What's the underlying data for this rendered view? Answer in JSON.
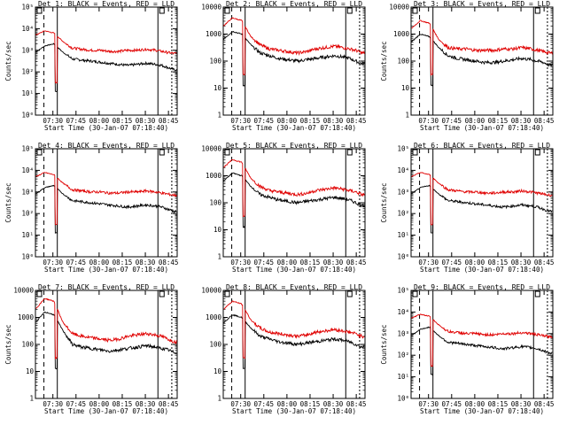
{
  "colors": {
    "events": "#000000",
    "lld": "#e00000",
    "axis": "#000000"
  },
  "chart_data": [
    {
      "type": "line",
      "title": "Det  1: BLACK = Events, RED = LLD",
      "xlabel": "Start Time (30-Jan-07 07:18:40)",
      "ylabel": "Counts/sec",
      "log": true,
      "ylim_exp": [
        0,
        5
      ],
      "yticks": [
        "10⁰",
        "10¹",
        "10²",
        "10³",
        "10⁴",
        "10⁵"
      ],
      "xticks": [
        "07:30",
        "07:45",
        "08:00",
        "08:15",
        "08:30",
        "08:45"
      ],
      "series": [
        {
          "name": "Events",
          "profile": "p1b"
        },
        {
          "name": "LLD",
          "profile": "p1r"
        }
      ]
    },
    {
      "type": "line",
      "title": "Det  2: BLACK = Events, RED = LLD",
      "xlabel": "Start Time (30-Jan-07 07:18:40)",
      "ylabel": "",
      "log": true,
      "ylim_exp": [
        0,
        4
      ],
      "yticks": [
        "1",
        "10",
        "100",
        "1000",
        "10000"
      ],
      "xticks": [
        "07:30",
        "07:45",
        "08:00",
        "08:15",
        "08:30",
        "08:45"
      ],
      "series": [
        {
          "name": "Events",
          "profile": "p2b"
        },
        {
          "name": "LLD",
          "profile": "p2r"
        }
      ]
    },
    {
      "type": "line",
      "title": "Det  3: BLACK = Events, RED = LLD",
      "xlabel": "Start Time (30-Jan-07 07:18:40)",
      "ylabel": "Counts/sec",
      "log": true,
      "ylim_exp": [
        0,
        4
      ],
      "yticks": [
        "1",
        "10",
        "100",
        "1000",
        "10000"
      ],
      "xticks": [
        "07:30",
        "07:45",
        "08:00",
        "08:15",
        "08:30",
        "08:45"
      ],
      "series": [
        {
          "name": "Events",
          "profile": "p3b"
        },
        {
          "name": "LLD",
          "profile": "p3r"
        }
      ]
    },
    {
      "type": "line",
      "title": "Det  4: BLACK = Events, RED = LLD",
      "xlabel": "Start Time (30-Jan-07 07:18:40)",
      "ylabel": "Counts/sec",
      "log": true,
      "ylim_exp": [
        0,
        5
      ],
      "yticks": [
        "10⁰",
        "10¹",
        "10²",
        "10³",
        "10⁴",
        "10⁵"
      ],
      "xticks": [
        "07:30",
        "07:45",
        "08:00",
        "08:15",
        "08:30",
        "08:45"
      ],
      "series": [
        {
          "name": "Events",
          "profile": "p1b"
        },
        {
          "name": "LLD",
          "profile": "p1r"
        }
      ]
    },
    {
      "type": "line",
      "title": "Det  5: BLACK = Events, RED = LLD",
      "xlabel": "Start Time (30-Jan-07 07:18:40)",
      "ylabel": "",
      "log": true,
      "ylim_exp": [
        0,
        4
      ],
      "yticks": [
        "1",
        "10",
        "100",
        "1000",
        "10000"
      ],
      "xticks": [
        "07:30",
        "07:45",
        "08:00",
        "08:15",
        "08:30",
        "08:45"
      ],
      "series": [
        {
          "name": "Events",
          "profile": "p2b"
        },
        {
          "name": "LLD",
          "profile": "p2r"
        }
      ]
    },
    {
      "type": "line",
      "title": "Det  6: BLACK = Events, RED = LLD",
      "xlabel": "Start Time (30-Jan-07 07:18:40)",
      "ylabel": "Counts/sec",
      "log": true,
      "ylim_exp": [
        0,
        5
      ],
      "yticks": [
        "10⁰",
        "10¹",
        "10²",
        "10³",
        "10⁴",
        "10⁵"
      ],
      "xticks": [
        "07:30",
        "07:45",
        "08:00",
        "08:15",
        "08:30",
        "08:45"
      ],
      "series": [
        {
          "name": "Events",
          "profile": "p1b"
        },
        {
          "name": "LLD",
          "profile": "p1r"
        }
      ]
    },
    {
      "type": "line",
      "title": "Det  7: BLACK = Events, RED = LLD",
      "xlabel": "Start Time (30-Jan-07 07:18:40)",
      "ylabel": "Counts/sec",
      "log": true,
      "ylim_exp": [
        0,
        4
      ],
      "yticks": [
        "1",
        "10",
        "100",
        "1000",
        "10000"
      ],
      "xticks": [
        "07:30",
        "07:45",
        "08:00",
        "08:15",
        "08:30",
        "08:45"
      ],
      "series": [
        {
          "name": "Events",
          "profile": "p7b"
        },
        {
          "name": "LLD",
          "profile": "p7r"
        }
      ]
    },
    {
      "type": "line",
      "title": "Det  8: BLACK = Events, RED = LLD",
      "xlabel": "Start Time (30-Jan-07 07:18:40)",
      "ylabel": "",
      "log": true,
      "ylim_exp": [
        0,
        4
      ],
      "yticks": [
        "1",
        "10",
        "100",
        "1000",
        "10000"
      ],
      "xticks": [
        "07:30",
        "07:45",
        "08:00",
        "08:15",
        "08:30",
        "08:45"
      ],
      "series": [
        {
          "name": "Events",
          "profile": "p2b"
        },
        {
          "name": "LLD",
          "profile": "p2r"
        }
      ]
    },
    {
      "type": "line",
      "title": "Det  9: BLACK = Events, RED = LLD",
      "xlabel": "Start Time (30-Jan-07 07:18:40)",
      "ylabel": "Counts/sec",
      "log": true,
      "ylim_exp": [
        0,
        5
      ],
      "yticks": [
        "10⁰",
        "10¹",
        "10²",
        "10³",
        "10⁴",
        "10⁵"
      ],
      "xticks": [
        "07:30",
        "07:45",
        "08:00",
        "08:15",
        "08:30",
        "08:45"
      ],
      "series": [
        {
          "name": "Events",
          "profile": "p1b"
        },
        {
          "name": "LLD",
          "profile": "p1r"
        }
      ]
    }
  ],
  "profiles": {
    "p1b": [
      [
        0,
        2.9
      ],
      [
        6,
        3.2
      ],
      [
        12,
        3.3
      ],
      [
        18,
        2.9
      ],
      [
        24,
        2.6
      ],
      [
        30,
        2.55
      ],
      [
        36,
        2.5
      ],
      [
        42,
        2.45
      ],
      [
        48,
        2.4
      ],
      [
        54,
        2.35
      ],
      [
        60,
        2.3
      ],
      [
        66,
        2.35
      ],
      [
        72,
        2.4
      ],
      [
        78,
        2.35
      ],
      [
        82,
        2.3
      ],
      [
        86,
        2.2
      ],
      [
        90,
        2.1
      ]
    ],
    "p1r": [
      [
        0,
        3.7
      ],
      [
        6,
        3.9
      ],
      [
        12,
        3.8
      ],
      [
        18,
        3.4
      ],
      [
        24,
        3.1
      ],
      [
        30,
        3.05
      ],
      [
        36,
        3.0
      ],
      [
        42,
        3.0
      ],
      [
        48,
        2.95
      ],
      [
        54,
        2.95
      ],
      [
        60,
        3.0
      ],
      [
        66,
        3.0
      ],
      [
        72,
        3.05
      ],
      [
        78,
        3.0
      ],
      [
        82,
        2.95
      ],
      [
        86,
        2.9
      ],
      [
        90,
        2.85
      ]
    ],
    "p2b": [
      [
        0,
        2.8
      ],
      [
        6,
        3.1
      ],
      [
        12,
        3.0
      ],
      [
        18,
        2.6
      ],
      [
        24,
        2.3
      ],
      [
        30,
        2.2
      ],
      [
        36,
        2.1
      ],
      [
        42,
        2.05
      ],
      [
        48,
        2.0
      ],
      [
        54,
        2.05
      ],
      [
        60,
        2.1
      ],
      [
        66,
        2.15
      ],
      [
        72,
        2.2
      ],
      [
        78,
        2.15
      ],
      [
        82,
        2.1
      ],
      [
        86,
        2.0
      ],
      [
        90,
        1.9
      ]
    ],
    "p2r": [
      [
        0,
        3.3
      ],
      [
        6,
        3.6
      ],
      [
        12,
        3.5
      ],
      [
        18,
        2.9
      ],
      [
        24,
        2.6
      ],
      [
        30,
        2.45
      ],
      [
        36,
        2.4
      ],
      [
        42,
        2.35
      ],
      [
        48,
        2.3
      ],
      [
        54,
        2.35
      ],
      [
        60,
        2.45
      ],
      [
        66,
        2.5
      ],
      [
        72,
        2.55
      ],
      [
        78,
        2.5
      ],
      [
        82,
        2.45
      ],
      [
        86,
        2.4
      ],
      [
        90,
        2.3
      ]
    ],
    "p3b": [
      [
        0,
        2.7
      ],
      [
        6,
        3.0
      ],
      [
        12,
        2.9
      ],
      [
        18,
        2.5
      ],
      [
        24,
        2.2
      ],
      [
        30,
        2.1
      ],
      [
        36,
        2.05
      ],
      [
        42,
        2.0
      ],
      [
        48,
        1.95
      ],
      [
        54,
        1.95
      ],
      [
        60,
        2.0
      ],
      [
        66,
        2.05
      ],
      [
        72,
        2.1
      ],
      [
        78,
        2.05
      ],
      [
        82,
        2.0
      ],
      [
        86,
        1.95
      ],
      [
        90,
        1.85
      ]
    ],
    "p3r": [
      [
        0,
        3.2
      ],
      [
        6,
        3.5
      ],
      [
        12,
        3.4
      ],
      [
        18,
        2.8
      ],
      [
        24,
        2.5
      ],
      [
        30,
        2.45
      ],
      [
        36,
        2.45
      ],
      [
        42,
        2.4
      ],
      [
        48,
        2.4
      ],
      [
        54,
        2.4
      ],
      [
        60,
        2.45
      ],
      [
        66,
        2.45
      ],
      [
        72,
        2.5
      ],
      [
        78,
        2.45
      ],
      [
        82,
        2.4
      ],
      [
        86,
        2.35
      ],
      [
        90,
        2.3
      ]
    ],
    "p7b": [
      [
        0,
        2.8
      ],
      [
        6,
        3.2
      ],
      [
        12,
        3.1
      ],
      [
        18,
        2.5
      ],
      [
        24,
        2.0
      ],
      [
        30,
        1.9
      ],
      [
        36,
        1.85
      ],
      [
        42,
        1.8
      ],
      [
        48,
        1.75
      ],
      [
        54,
        1.8
      ],
      [
        60,
        1.85
      ],
      [
        66,
        1.9
      ],
      [
        72,
        1.95
      ],
      [
        78,
        1.9
      ],
      [
        82,
        1.85
      ],
      [
        86,
        1.8
      ],
      [
        90,
        1.7
      ]
    ],
    "p7r": [
      [
        0,
        3.3
      ],
      [
        6,
        3.7
      ],
      [
        12,
        3.6
      ],
      [
        18,
        2.8
      ],
      [
        24,
        2.4
      ],
      [
        30,
        2.3
      ],
      [
        36,
        2.25
      ],
      [
        42,
        2.2
      ],
      [
        48,
        2.15
      ],
      [
        54,
        2.2
      ],
      [
        60,
        2.3
      ],
      [
        66,
        2.35
      ],
      [
        72,
        2.4
      ],
      [
        78,
        2.35
      ],
      [
        82,
        2.3
      ],
      [
        86,
        2.2
      ],
      [
        90,
        2.1
      ]
    ]
  }
}
